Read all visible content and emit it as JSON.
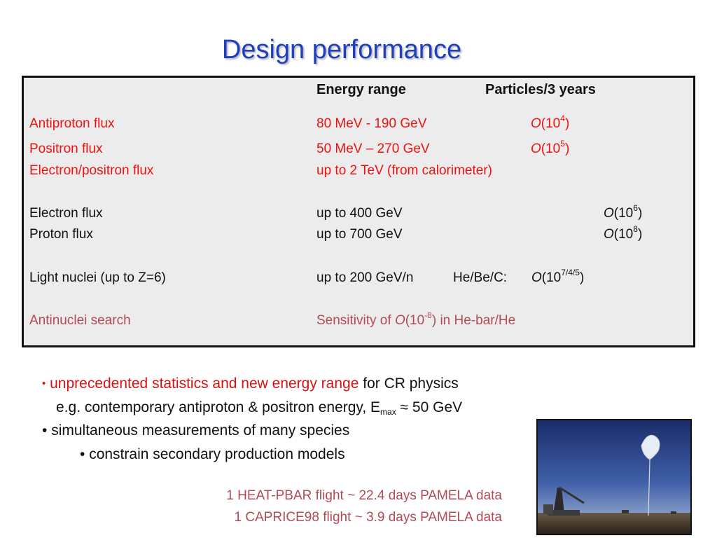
{
  "title": "Design performance",
  "table": {
    "headers": {
      "energy": "Energy range",
      "particles": "Particles/3 years"
    },
    "rows": [
      {
        "name": "Antiproton flux",
        "energy": "80 MeV - 190 GeV",
        "o": "O",
        "count_pre": "(10",
        "exp": "4",
        "count_post": ")",
        "color": "#ee1111"
      },
      {
        "name": "Positron flux",
        "energy": "50 MeV – 270 GeV",
        "o": "O",
        "count_pre": "(10",
        "exp": "5",
        "count_post": ")",
        "color": "#ee1111"
      },
      {
        "name": "Electron/positron flux",
        "energy": "up to 2 TeV (from calorimeter)",
        "color": "#ee1111"
      },
      {
        "name": "Electron flux",
        "energy": "up to 400 GeV",
        "o": "O",
        "count_pre": "(10",
        "exp": "6",
        "count_post": ")",
        "color": "#111111"
      },
      {
        "name": "Proton flux",
        "energy": "up to 700 GeV",
        "o": "O",
        "count_pre": "(10",
        "exp": "8",
        "count_post": ")",
        "color": "#111111"
      },
      {
        "name": "Light nuclei (up to Z=6)",
        "energy": "up to 200 GeV/n",
        "extra": "He/Be/C:",
        "o": "O",
        "count_pre": "(10",
        "exp": "7/4/5",
        "count_post": ")",
        "color": "#111111"
      },
      {
        "name": "Antinuclei search",
        "energy_pre": "Sensitivity of ",
        "o": "O",
        "count_pre": "(10",
        "exp": "-8",
        "energy_post": ") in He-bar/He",
        "color": "#b24a55"
      }
    ]
  },
  "bullets": {
    "b1_red": "unprecedented statistics and new energy range",
    "b1_rest": " for CR physics",
    "b1_sub_pre": "e.g. contemporary antiproton & positron energy, E",
    "b1_sub_sub": "max",
    "b1_sub_post": " ≈ 50 GeV",
    "b2": "simultaneous measurements of many species",
    "b3": "constrain secondary production models",
    "bullet_char": "•"
  },
  "flights": {
    "line1": "1 HEAT-PBAR flight ~ 22.4 days PAMELA data",
    "line2": "1 CAPRICE98 flight  ~ 3.9 days PAMELA data"
  }
}
